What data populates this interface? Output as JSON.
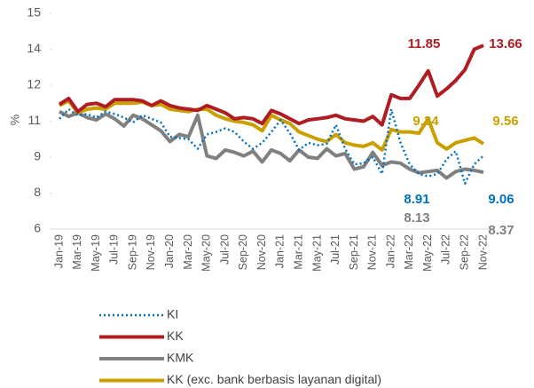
{
  "chart_data": {
    "type": "line",
    "y_label": "%",
    "categories": [
      "Jan-19",
      null,
      "Mar-19",
      null,
      "May-19",
      null,
      "Jul-19",
      null,
      "Sep-19",
      null,
      "Nov-19",
      null,
      "Jan-20",
      null,
      "Mar-20",
      null,
      "May-20",
      null,
      "Jul-20",
      null,
      "Sep-20",
      null,
      "Nov-20",
      null,
      "Jan-21",
      null,
      "Mar-21",
      null,
      "May-21",
      null,
      "Jul-21",
      null,
      "Sep-21",
      null,
      "Nov-21",
      null,
      "Jan-22",
      null,
      "Mar-22",
      null,
      "May-22",
      null,
      "Jul-22",
      null,
      "Sep-22",
      null,
      "Nov-22"
    ],
    "ylim": [
      6,
      15
    ],
    "yticks": [
      6,
      {
        "value": 7.5,
        "label": "8"
      },
      9,
      {
        "value": 10.5,
        "label": "11"
      },
      12,
      {
        "value": 13.5,
        "label": "14"
      },
      15
    ],
    "series": [
      {
        "name": "KI",
        "color": "#0070c0",
        "style": "dotted",
        "values": [
          10.6,
          11.0,
          10.75,
          10.8,
          10.65,
          10.9,
          10.8,
          10.65,
          10.45,
          10.75,
          10.6,
          10.45,
          9.85,
          9.8,
          9.75,
          9.35,
          9.95,
          10.05,
          10.2,
          10.05,
          9.65,
          9.35,
          9.6,
          10.05,
          10.55,
          10.0,
          9.3,
          9.6,
          9.5,
          9.55,
          10.35,
          9.35,
          8.7,
          8.75,
          9.0,
          8.3,
          11.0,
          9.6,
          8.7,
          8.3,
          8.2,
          8.3,
          8.91,
          9.25,
          7.9,
          8.7,
          9.06
        ]
      },
      {
        "name": "KK",
        "color": "#b01c22",
        "style": "solid",
        "values": [
          11.2,
          11.45,
          10.9,
          11.2,
          11.25,
          11.1,
          11.4,
          11.4,
          11.4,
          11.35,
          11.15,
          11.35,
          11.15,
          11.05,
          11.0,
          10.95,
          11.15,
          11.0,
          10.85,
          10.6,
          10.65,
          10.6,
          10.4,
          10.95,
          10.8,
          10.6,
          10.4,
          10.55,
          10.6,
          10.65,
          10.75,
          10.6,
          10.55,
          10.5,
          10.7,
          10.35,
          11.6,
          11.45,
          11.45,
          12.0,
          12.6,
          11.55,
          11.85,
          12.2,
          12.65,
          13.5,
          13.66
        ]
      },
      {
        "name": "KMK",
        "color": "#808080",
        "style": "solid",
        "values": [
          10.9,
          10.7,
          10.85,
          10.65,
          10.55,
          10.8,
          10.6,
          10.3,
          10.75,
          10.6,
          10.35,
          10.1,
          9.65,
          9.95,
          9.85,
          10.75,
          9.05,
          8.95,
          9.3,
          9.2,
          9.05,
          9.25,
          8.8,
          9.3,
          9.15,
          8.85,
          9.3,
          9.0,
          8.95,
          9.35,
          9.05,
          9.15,
          8.5,
          8.6,
          9.2,
          8.65,
          8.8,
          8.75,
          8.5,
          8.35,
          8.4,
          8.45,
          8.13,
          8.4,
          8.5,
          8.45,
          8.37
        ]
      },
      {
        "name": "KK (exc. bank berbasis layanan digital)",
        "color": "#c9a000",
        "style": "solid",
        "values": [
          11.15,
          11.35,
          10.85,
          11.0,
          11.05,
          11.0,
          11.25,
          11.25,
          11.25,
          11.3,
          11.15,
          11.2,
          11.0,
          10.95,
          10.9,
          11.0,
          11.0,
          10.75,
          10.6,
          10.5,
          10.45,
          10.35,
          10.1,
          10.75,
          10.55,
          10.4,
          10.05,
          9.9,
          9.75,
          9.65,
          9.95,
          9.6,
          9.5,
          9.45,
          9.6,
          9.3,
          10.15,
          10.05,
          10.05,
          10.0,
          10.6,
          9.6,
          9.34,
          9.6,
          9.7,
          9.8,
          9.56
        ]
      }
    ],
    "annotations": [
      {
        "text": "11.85",
        "color": "#b01c22"
      },
      {
        "text": "13.66",
        "color": "#b01c22"
      },
      {
        "text": "9.34",
        "color": "#c9a000"
      },
      {
        "text": "9.56",
        "color": "#c9a000"
      },
      {
        "text": "8.91",
        "color": "#0070c0"
      },
      {
        "text": "9.06",
        "color": "#0070c0"
      },
      {
        "text": "8.13",
        "color": "#808080"
      },
      {
        "text": "8.37",
        "color": "#808080"
      }
    ]
  }
}
